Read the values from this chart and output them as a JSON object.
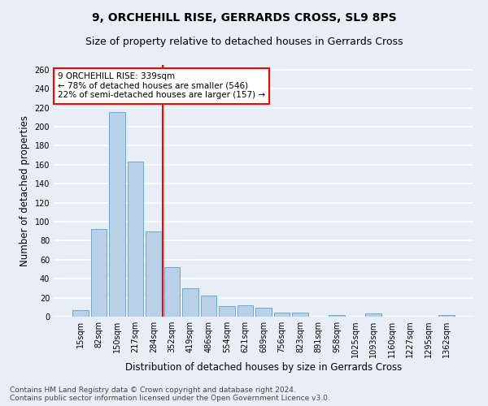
{
  "title": "9, ORCHEHILL RISE, GERRARDS CROSS, SL9 8PS",
  "subtitle": "Size of property relative to detached houses in Gerrards Cross",
  "xlabel": "Distribution of detached houses by size in Gerrards Cross",
  "ylabel": "Number of detached properties",
  "footer_line1": "Contains HM Land Registry data © Crown copyright and database right 2024.",
  "footer_line2": "Contains public sector information licensed under the Open Government Licence v3.0.",
  "categories": [
    "15sqm",
    "82sqm",
    "150sqm",
    "217sqm",
    "284sqm",
    "352sqm",
    "419sqm",
    "486sqm",
    "554sqm",
    "621sqm",
    "689sqm",
    "756sqm",
    "823sqm",
    "891sqm",
    "958sqm",
    "1025sqm",
    "1093sqm",
    "1160sqm",
    "1227sqm",
    "1295sqm",
    "1362sqm"
  ],
  "values": [
    7,
    92,
    215,
    163,
    90,
    52,
    30,
    22,
    11,
    12,
    9,
    4,
    4,
    0,
    2,
    0,
    3,
    0,
    0,
    0,
    2
  ],
  "bar_color": "#b8d0e8",
  "bar_edge_color": "#6aaad4",
  "ref_line_index": 4.5,
  "ref_line_color": "red",
  "annotation_text": "9 ORCHEHILL RISE: 339sqm\n← 78% of detached houses are smaller (546)\n22% of semi-detached houses are larger (157) →",
  "annotation_box_color": "white",
  "annotation_box_edge_color": "red",
  "ylim": [
    0,
    265
  ],
  "yticks": [
    0,
    20,
    40,
    60,
    80,
    100,
    120,
    140,
    160,
    180,
    200,
    220,
    240,
    260
  ],
  "bg_color": "#e8eef5",
  "grid_color": "white",
  "title_fontsize": 10,
  "subtitle_fontsize": 9,
  "axis_label_fontsize": 8.5,
  "tick_fontsize": 7,
  "annotation_fontsize": 7.5,
  "footer_fontsize": 6.5
}
